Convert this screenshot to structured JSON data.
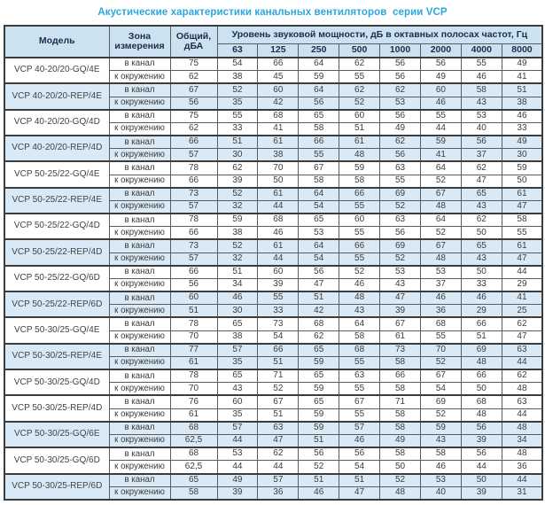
{
  "page_title": "Акустические характеристики канальных вентиляторов  серии VCP",
  "colors": {
    "title_text": "#29a9e0",
    "header_bg": "#cde2f1",
    "header_text": "#1d2c49",
    "shaded_row_bg": "#d9eaf6",
    "border_dark": "#3a3c3e",
    "border_light": "#7d8084"
  },
  "table": {
    "header": {
      "model": "Модель",
      "zone_line1": "Зона",
      "zone_line2": "измерения",
      "total_line1": "Общий,",
      "total_line2": "дБА",
      "spl_title": "Уровень звуковой мощности, дБ в октавных полосах частот, Гц",
      "frequencies": [
        "63",
        "125",
        "250",
        "500",
        "1000",
        "2000",
        "4000",
        "8000"
      ]
    },
    "zone_labels": [
      "в канал",
      "к окружению"
    ],
    "models": [
      {
        "name": "VCP 40-20/20-GQ/4E",
        "shaded": false,
        "rows": [
          {
            "zone": "в канал",
            "total": "75",
            "levels": [
              "54",
              "66",
              "64",
              "62",
              "56",
              "56",
              "55",
              "49"
            ]
          },
          {
            "zone": "к окружению",
            "total": "62",
            "levels": [
              "38",
              "45",
              "59",
              "55",
              "56",
              "49",
              "46",
              "41"
            ]
          }
        ]
      },
      {
        "name": "VCP 40-20/20-REP/4E",
        "shaded": true,
        "rows": [
          {
            "zone": "в канал",
            "total": "67",
            "levels": [
              "52",
              "60",
              "64",
              "62",
              "62",
              "60",
              "58",
              "51"
            ]
          },
          {
            "zone": "к окружению",
            "total": "56",
            "levels": [
              "35",
              "42",
              "56",
              "52",
              "53",
              "46",
              "43",
              "38"
            ]
          }
        ]
      },
      {
        "name": "VCP 40-20/20-GQ/4D",
        "shaded": false,
        "rows": [
          {
            "zone": "в канал",
            "total": "75",
            "levels": [
              "55",
              "68",
              "65",
              "60",
              "56",
              "55",
              "53",
              "46"
            ]
          },
          {
            "zone": "к окружению",
            "total": "62",
            "levels": [
              "33",
              "41",
              "58",
              "51",
              "49",
              "44",
              "40",
              "33"
            ]
          }
        ]
      },
      {
        "name": "VCP 40-20/20-REP/4D",
        "shaded": true,
        "rows": [
          {
            "zone": "в канал",
            "total": "66",
            "levels": [
              "51",
              "61",
              "66",
              "61",
              "62",
              "59",
              "56",
              "49"
            ]
          },
          {
            "zone": "к окружению",
            "total": "57",
            "levels": [
              "30",
              "38",
              "55",
              "48",
              "56",
              "41",
              "37",
              "30"
            ]
          }
        ]
      },
      {
        "name": "VCP 50-25/22-GQ/4E",
        "shaded": false,
        "rows": [
          {
            "zone": "в канал",
            "total": "78",
            "levels": [
              "62",
              "70",
              "67",
              "59",
              "63",
              "64",
              "62",
              "59"
            ]
          },
          {
            "zone": "к окружению",
            "total": "66",
            "levels": [
              "39",
              "50",
              "58",
              "58",
              "55",
              "52",
              "47",
              "50"
            ]
          }
        ]
      },
      {
        "name": "VCP 50-25/22-REP/4E",
        "shaded": true,
        "rows": [
          {
            "zone": "в канал",
            "total": "73",
            "levels": [
              "52",
              "61",
              "64",
              "66",
              "69",
              "67",
              "65",
              "61"
            ]
          },
          {
            "zone": "к окружению",
            "total": "57",
            "levels": [
              "32",
              "44",
              "54",
              "55",
              "52",
              "48",
              "43",
              "47"
            ]
          }
        ]
      },
      {
        "name": "VCP 50-25/22-GQ/4D",
        "shaded": false,
        "rows": [
          {
            "zone": "в канал",
            "total": "78",
            "levels": [
              "59",
              "68",
              "65",
              "60",
              "63",
              "64",
              "62",
              "58"
            ]
          },
          {
            "zone": "к окружению",
            "total": "66",
            "levels": [
              "38",
              "46",
              "53",
              "55",
              "56",
              "52",
              "50",
              "55"
            ]
          }
        ]
      },
      {
        "name": "VCP 50-25/22-REP/4D",
        "shaded": true,
        "rows": [
          {
            "zone": "в канал",
            "total": "73",
            "levels": [
              "52",
              "61",
              "64",
              "66",
              "69",
              "67",
              "65",
              "61"
            ]
          },
          {
            "zone": "к окружению",
            "total": "57",
            "levels": [
              "32",
              "44",
              "54",
              "55",
              "52",
              "48",
              "43",
              "47"
            ]
          }
        ]
      },
      {
        "name": "VCP 50-25/22-GQ/6D",
        "shaded": false,
        "rows": [
          {
            "zone": "в канал",
            "total": "66",
            "levels": [
              "51",
              "60",
              "56",
              "52",
              "53",
              "53",
              "50",
              "44"
            ]
          },
          {
            "zone": "к окружению",
            "total": "56",
            "levels": [
              "34",
              "39",
              "47",
              "46",
              "43",
              "37",
              "33",
              "29"
            ]
          }
        ]
      },
      {
        "name": "VCP 50-25/22-REP/6D",
        "shaded": true,
        "rows": [
          {
            "zone": "в канал",
            "total": "60",
            "levels": [
              "46",
              "55",
              "51",
              "48",
              "47",
              "46",
              "46",
              "41"
            ]
          },
          {
            "zone": "к окружению",
            "total": "51",
            "levels": [
              "30",
              "33",
              "42",
              "43",
              "39",
              "36",
              "29",
              "25"
            ]
          }
        ]
      },
      {
        "name": "VCP 50-30/25-GQ/4E",
        "shaded": false,
        "rows": [
          {
            "zone": "в канал",
            "total": "78",
            "levels": [
              "65",
              "73",
              "68",
              "64",
              "67",
              "68",
              "66",
              "62"
            ]
          },
          {
            "zone": "к окружению",
            "total": "70",
            "levels": [
              "38",
              "54",
              "62",
              "58",
              "61",
              "55",
              "51",
              "47"
            ]
          }
        ]
      },
      {
        "name": "VCP 50-30/25-REP/4E",
        "shaded": true,
        "rows": [
          {
            "zone": "в канал",
            "total": "77",
            "levels": [
              "57",
              "66",
              "65",
              "68",
              "73",
              "70",
              "69",
              "63"
            ]
          },
          {
            "zone": "к окружению",
            "total": "61",
            "levels": [
              "35",
              "51",
              "59",
              "55",
              "58",
              "52",
              "48",
              "44"
            ]
          }
        ]
      },
      {
        "name": "VCP 50-30/25-GQ/4D",
        "shaded": false,
        "rows": [
          {
            "zone": "в канал",
            "total": "78",
            "levels": [
              "65",
              "71",
              "65",
              "63",
              "66",
              "67",
              "66",
              "62"
            ]
          },
          {
            "zone": "к окружению",
            "total": "70",
            "levels": [
              "43",
              "52",
              "59",
              "55",
              "58",
              "54",
              "50",
              "48"
            ]
          }
        ]
      },
      {
        "name": "VCP 50-30/25-REP/4D",
        "shaded": false,
        "rows": [
          {
            "zone": "в канал",
            "total": "76",
            "levels": [
              "60",
              "67",
              "65",
              "67",
              "71",
              "69",
              "68",
              "63"
            ]
          },
          {
            "zone": "к окружению",
            "total": "61",
            "levels": [
              "35",
              "51",
              "59",
              "55",
              "58",
              "52",
              "48",
              "44"
            ]
          }
        ]
      },
      {
        "name": "VCP 50-30/25-GQ/6E",
        "shaded": true,
        "rows": [
          {
            "zone": "в канал",
            "total": "68",
            "levels": [
              "57",
              "63",
              "59",
              "57",
              "58",
              "59",
              "56",
              "48"
            ]
          },
          {
            "zone": "к окружению",
            "total": "62,5",
            "levels": [
              "44",
              "47",
              "51",
              "46",
              "49",
              "43",
              "39",
              "34"
            ]
          }
        ]
      },
      {
        "name": "VCP 50-30/25-GQ/6D",
        "shaded": false,
        "rows": [
          {
            "zone": "в канал",
            "total": "68",
            "levels": [
              "53",
              "62",
              "56",
              "56",
              "58",
              "58",
              "56",
              "48"
            ]
          },
          {
            "zone": "к окружению",
            "total": "62,5",
            "levels": [
              "44",
              "44",
              "52",
              "54",
              "50",
              "46",
              "44",
              "36"
            ]
          }
        ]
      },
      {
        "name": "VCP 50-30/25-REP/6D",
        "shaded": true,
        "rows": [
          {
            "zone": "в канал",
            "total": "65",
            "levels": [
              "49",
              "57",
              "51",
              "51",
              "52",
              "53",
              "50",
              "44"
            ]
          },
          {
            "zone": "к окружению",
            "total": "58",
            "levels": [
              "39",
              "36",
              "46",
              "47",
              "48",
              "40",
              "39",
              "31"
            ]
          }
        ]
      }
    ]
  }
}
